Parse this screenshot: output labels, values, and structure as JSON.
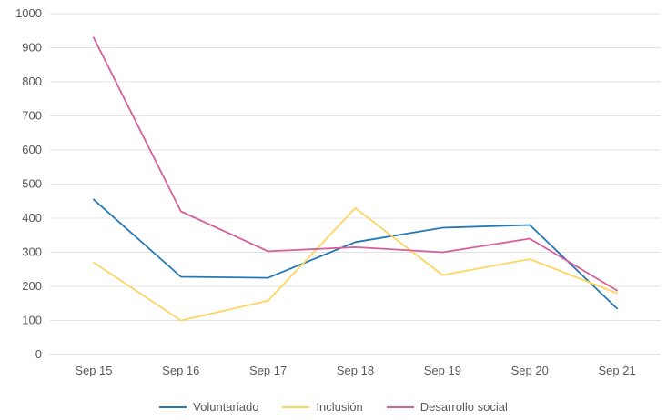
{
  "chart_data": {
    "type": "line",
    "title": "",
    "categories": [
      "Sep 15",
      "Sep 16",
      "Sep 17",
      "Sep 18",
      "Sep 19",
      "Sep 20",
      "Sep 21"
    ],
    "series": [
      {
        "name": "Voluntariado",
        "color": "#2479b5",
        "values": [
          455,
          228,
          225,
          330,
          372,
          380,
          135
        ]
      },
      {
        "name": "Inclusión",
        "color": "#ffd45f",
        "values": [
          270,
          100,
          158,
          430,
          233,
          280,
          180
        ]
      },
      {
        "name": "Desarrollo social",
        "color": "#d65f9b",
        "values": [
          930,
          420,
          303,
          315,
          300,
          340,
          188
        ]
      }
    ],
    "ylim": [
      0,
      1000
    ],
    "ytick_step": 100,
    "grid": true,
    "legend_position": "bottom",
    "colors": {
      "grid": "#e2e2e2",
      "axis_line": "#c6c6c6",
      "axis_text": "#595959",
      "background": "#ffffff"
    }
  }
}
